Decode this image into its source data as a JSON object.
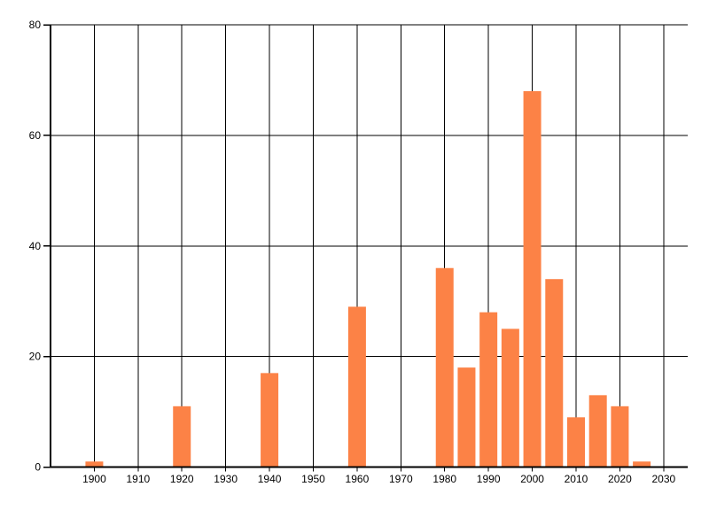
{
  "chart_data": {
    "type": "bar",
    "title": "",
    "xlabel": "",
    "ylabel": "",
    "categories": [
      1900,
      1905,
      1910,
      1915,
      1920,
      1925,
      1930,
      1935,
      1940,
      1945,
      1950,
      1955,
      1960,
      1965,
      1970,
      1975,
      1980,
      1985,
      1990,
      1995,
      2000,
      2005,
      2010,
      2015,
      2020,
      2025
    ],
    "values": [
      1,
      0,
      0,
      0,
      11,
      0,
      0,
      0,
      17,
      0,
      0,
      0,
      29,
      0,
      0,
      0,
      36,
      18,
      28,
      25,
      68,
      34,
      9,
      13,
      11,
      1
    ],
    "bin_width_years": 5,
    "x_axis": {
      "tick_values": [
        1900,
        1910,
        1920,
        1930,
        1940,
        1950,
        1960,
        1970,
        1980,
        1990,
        2000,
        2010,
        2020,
        2030
      ],
      "tick_labels": [
        "1900",
        "1910",
        "1920",
        "1930",
        "1940",
        "1950",
        "1960",
        "1970",
        "1980",
        "1990",
        "2000",
        "2010",
        "2020",
        "2030"
      ],
      "range": [
        1890,
        2035.5
      ]
    },
    "y_axis": {
      "tick_values": [
        0,
        20,
        40,
        60,
        80
      ],
      "tick_labels": [
        "0",
        "20",
        "40",
        "60",
        "80"
      ],
      "range": [
        0,
        80
      ]
    },
    "legend": null,
    "grid": true,
    "colors": {
      "bar": "#FC8246",
      "grid_line": "#000000",
      "axis_line": "#000000",
      "tick_label": "#000000",
      "background": "#FFFFFF"
    }
  }
}
